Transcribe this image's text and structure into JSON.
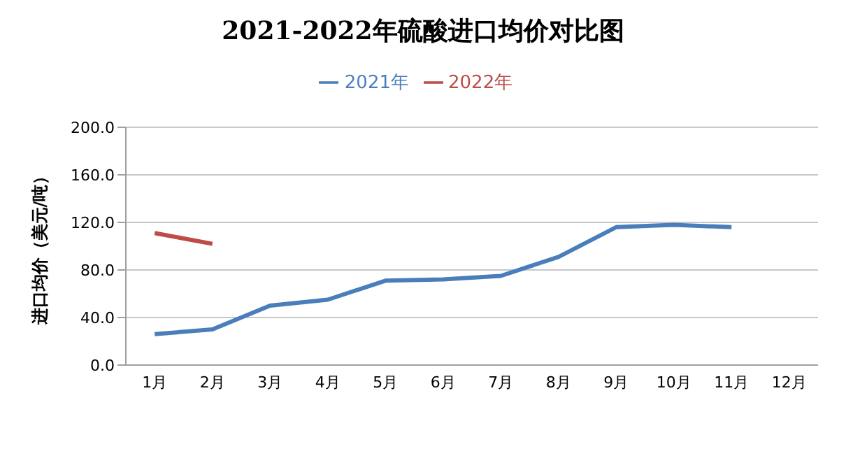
{
  "chart_data": {
    "type": "line",
    "title": "2021-2022年硫酸进口均价对比图",
    "ylabel": "进口均价（美元/吨）",
    "categories": [
      "1月",
      "2月",
      "3月",
      "4月",
      "5月",
      "6月",
      "7月",
      "8月",
      "9月",
      "10月",
      "11月",
      "12月"
    ],
    "series": [
      {
        "name": "2021年",
        "color": "#4a7ebb",
        "values": [
          26,
          30,
          50,
          55,
          71,
          72,
          75,
          91,
          116,
          118,
          116,
          null
        ]
      },
      {
        "name": "2022年",
        "color": "#be4b48",
        "values": [
          111,
          102,
          null,
          null,
          null,
          null,
          null,
          null,
          null,
          null,
          null,
          null
        ]
      }
    ],
    "ylim": [
      0,
      200
    ],
    "yticks": [
      {
        "value": 0,
        "label": "0.0"
      },
      {
        "value": 40,
        "label": "40.0"
      },
      {
        "value": 80,
        "label": "80.0"
      },
      {
        "value": 120,
        "label": "120.0"
      },
      {
        "value": 160,
        "label": "160.0"
      },
      {
        "value": 200,
        "label": "200.0"
      }
    ],
    "grid": "y",
    "legend": "top",
    "marker": "none",
    "line_style": "solid"
  }
}
